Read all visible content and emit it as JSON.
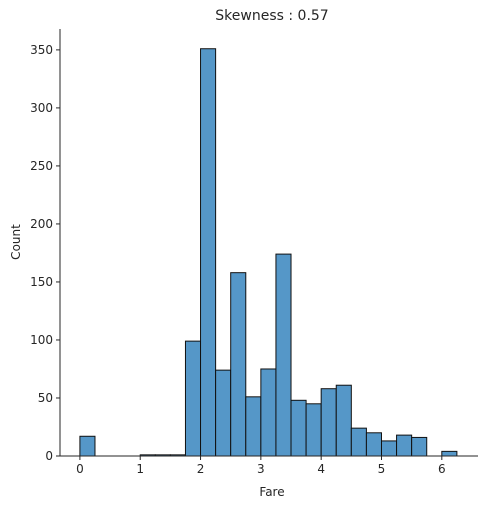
{
  "chart_data": {
    "type": "bar",
    "title": "Skewness : 0.57",
    "xlabel": "Fare",
    "ylabel": "Count",
    "xlim": [
      -0.33,
      6.6
    ],
    "ylim": [
      0,
      368
    ],
    "bin_width": 0.25,
    "xticks": [
      0,
      1,
      2,
      3,
      4,
      5,
      6
    ],
    "yticks": [
      0,
      50,
      100,
      150,
      200,
      250,
      300,
      350
    ],
    "bins": [
      {
        "x0": 0.0,
        "x1": 0.25,
        "count": 17
      },
      {
        "x0": 0.25,
        "x1": 0.5,
        "count": 0
      },
      {
        "x0": 0.5,
        "x1": 0.75,
        "count": 0
      },
      {
        "x0": 0.75,
        "x1": 1.0,
        "count": 0
      },
      {
        "x0": 1.0,
        "x1": 1.25,
        "count": 1
      },
      {
        "x0": 1.25,
        "x1": 1.5,
        "count": 1
      },
      {
        "x0": 1.5,
        "x1": 1.75,
        "count": 1
      },
      {
        "x0": 1.75,
        "x1": 2.0,
        "count": 99
      },
      {
        "x0": 2.0,
        "x1": 2.25,
        "count": 351
      },
      {
        "x0": 2.25,
        "x1": 2.5,
        "count": 74
      },
      {
        "x0": 2.5,
        "x1": 2.75,
        "count": 158
      },
      {
        "x0": 2.75,
        "x1": 3.0,
        "count": 51
      },
      {
        "x0": 3.0,
        "x1": 3.25,
        "count": 75
      },
      {
        "x0": 3.25,
        "x1": 3.5,
        "count": 174
      },
      {
        "x0": 3.5,
        "x1": 3.75,
        "count": 48
      },
      {
        "x0": 3.75,
        "x1": 4.0,
        "count": 45
      },
      {
        "x0": 4.0,
        "x1": 4.25,
        "count": 58
      },
      {
        "x0": 4.25,
        "x1": 4.5,
        "count": 61
      },
      {
        "x0": 4.5,
        "x1": 4.75,
        "count": 24
      },
      {
        "x0": 4.75,
        "x1": 5.0,
        "count": 20
      },
      {
        "x0": 5.0,
        "x1": 5.25,
        "count": 13
      },
      {
        "x0": 5.25,
        "x1": 5.5,
        "count": 18
      },
      {
        "x0": 5.5,
        "x1": 5.75,
        "count": 16
      },
      {
        "x0": 5.75,
        "x1": 6.0,
        "count": 0
      },
      {
        "x0": 6.0,
        "x1": 6.25,
        "count": 4
      }
    ],
    "bar_color": "#5597c8",
    "edge_color": "#111111",
    "grid": false,
    "spines": "left-bottom"
  }
}
